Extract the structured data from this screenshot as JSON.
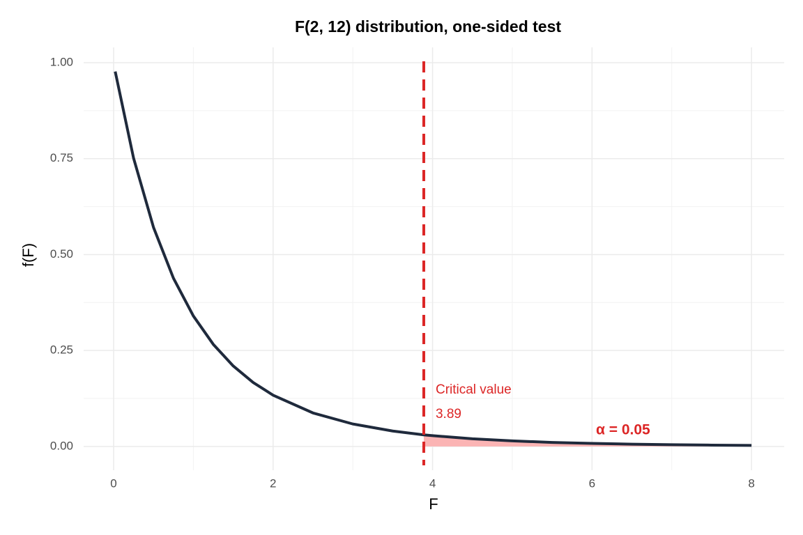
{
  "chart_data": {
    "type": "line",
    "title": "F(2, 12) distribution, one-sided test",
    "x_label": "F",
    "y_label": "f(F)",
    "x": [
      0.02,
      0.25,
      0.5,
      0.75,
      1,
      1.25,
      1.5,
      1.75,
      2,
      2.5,
      3,
      3.5,
      3.89,
      4,
      4.5,
      5,
      5.5,
      6,
      6.5,
      7,
      7.5,
      8
    ],
    "values": [
      0.977,
      0.7515,
      0.571,
      0.4385,
      0.34,
      0.266,
      0.2097,
      0.1667,
      0.1335,
      0.0873,
      0.0585,
      0.0401,
      0.0302,
      0.028,
      0.0199,
      0.0144,
      0.0105,
      0.0078,
      0.00587,
      0.00446,
      0.00343,
      0.00266
    ],
    "color": "#1f2a3c",
    "critical_value": 3.89,
    "critical_label": "Critical value",
    "alpha_label": "α = 0.05",
    "critical_color": "#dc2626",
    "shade_color": "#fbb4b4",
    "xlim": [
      -0.376,
      8.41
    ],
    "ylim": [
      -0.062,
      1.04
    ],
    "xticks": [
      0,
      2,
      4,
      6,
      8
    ],
    "x_minor_ticks": [
      1,
      3,
      5,
      7
    ],
    "yticks": [
      {
        "value": 0,
        "label": "0.00"
      },
      {
        "value": 0.25,
        "label": "0.25"
      },
      {
        "value": 0.5,
        "label": "0.50"
      },
      {
        "value": 0.75,
        "label": "0.75"
      },
      {
        "value": 1,
        "label": "1.00"
      }
    ],
    "y_minor_ticks": [
      0.125,
      0.375,
      0.625,
      0.875
    ],
    "grid": true
  }
}
